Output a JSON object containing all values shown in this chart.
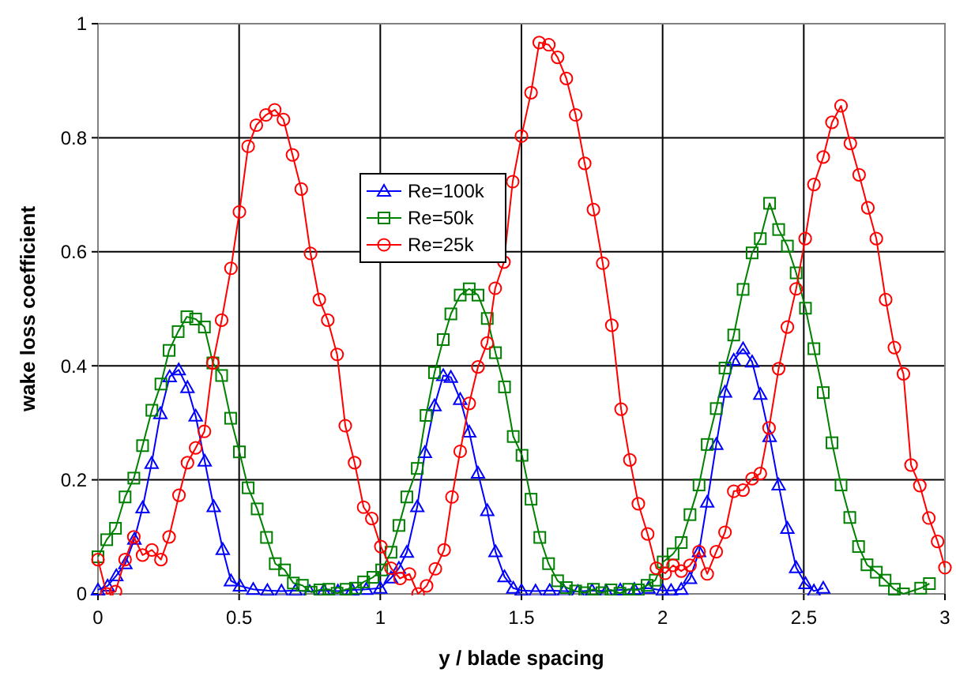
{
  "chart_data": {
    "type": "line",
    "xlabel": "y / blade spacing",
    "ylabel": "wake loss coefficient",
    "xlim": [
      0,
      3
    ],
    "xticks": [
      0,
      0.5,
      1,
      1.5,
      2,
      2.5,
      3
    ],
    "ylim": [
      0,
      1
    ],
    "yticks": [
      0,
      0.2,
      0.4,
      0.6,
      0.8,
      1
    ],
    "grid": true,
    "legend": "top left",
    "series": [
      {
        "name": "Re=100k",
        "color": "#0000ff",
        "marker": "triangle",
        "x": [
          0,
          0.034,
          0.065,
          0.097,
          0.129,
          0.158,
          0.19,
          0.221,
          0.254,
          0.286,
          0.317,
          0.346,
          0.378,
          0.41,
          0.442,
          0.471,
          0.503,
          0.55,
          0.6,
          0.65,
          0.7,
          0.75,
          0.8,
          0.85,
          0.9,
          0.95,
          1.0,
          1.038,
          1.066,
          1.094,
          1.131,
          1.158,
          1.192,
          1.223,
          1.25,
          1.283,
          1.315,
          1.346,
          1.379,
          1.408,
          1.44,
          1.471,
          1.5,
          1.55,
          1.6,
          1.65,
          1.7,
          1.75,
          1.8,
          1.85,
          1.9,
          1.95,
          2.0,
          2.03,
          2.066,
          2.097,
          2.129,
          2.158,
          2.19,
          2.221,
          2.252,
          2.285,
          2.317,
          2.346,
          2.379,
          2.411,
          2.442,
          2.473,
          2.506,
          2.536,
          2.569
        ],
        "values": [
          0.007,
          0.014,
          0.032,
          0.053,
          0.096,
          0.151,
          0.229,
          0.316,
          0.381,
          0.393,
          0.362,
          0.312,
          0.233,
          0.153,
          0.078,
          0.023,
          0.014,
          0.008,
          0.006,
          0.005,
          0.006,
          0.004,
          0.006,
          0.005,
          0.007,
          0.008,
          0.01,
          0.028,
          0.045,
          0.073,
          0.153,
          0.248,
          0.33,
          0.383,
          0.38,
          0.341,
          0.284,
          0.212,
          0.146,
          0.074,
          0.03,
          0.01,
          0.006,
          0.005,
          0.006,
          0.005,
          0.004,
          0.006,
          0.005,
          0.007,
          0.008,
          0.01,
          0.006,
          0.006,
          0.008,
          0.027,
          0.074,
          0.161,
          0.262,
          0.354,
          0.41,
          0.43,
          0.407,
          0.35,
          0.276,
          0.191,
          0.115,
          0.046,
          0.018,
          0.005,
          0.01
        ]
      },
      {
        "name": "Re=50k",
        "color": "#008000",
        "marker": "square",
        "x": [
          0,
          0.031,
          0.062,
          0.096,
          0.127,
          0.158,
          0.191,
          0.223,
          0.252,
          0.284,
          0.315,
          0.346,
          0.377,
          0.407,
          0.438,
          0.47,
          0.501,
          0.532,
          0.564,
          0.597,
          0.628,
          0.661,
          0.692,
          0.724,
          0.755,
          0.786,
          0.818,
          0.847,
          0.879,
          0.912,
          0.941,
          0.974,
          1.005,
          1.038,
          1.066,
          1.094,
          1.131,
          1.162,
          1.192,
          1.223,
          1.25,
          1.283,
          1.315,
          1.346,
          1.379,
          1.408,
          1.44,
          1.471,
          1.502,
          1.534,
          1.565,
          1.596,
          1.628,
          1.659,
          1.692,
          1.724,
          1.755,
          1.785,
          1.817,
          1.849,
          1.88,
          1.914,
          1.945,
          1.974,
          2.002,
          2.037,
          2.066,
          2.097,
          2.129,
          2.158,
          2.19,
          2.221,
          2.252,
          2.285,
          2.317,
          2.346,
          2.379,
          2.411,
          2.442,
          2.473,
          2.506,
          2.536,
          2.569,
          2.6,
          2.632,
          2.663,
          2.694,
          2.724,
          2.757,
          2.788,
          2.821,
          2.853,
          2.914,
          2.945
        ],
        "values": [
          0.065,
          0.095,
          0.115,
          0.17,
          0.203,
          0.26,
          0.322,
          0.368,
          0.427,
          0.46,
          0.486,
          0.482,
          0.468,
          0.405,
          0.383,
          0.308,
          0.249,
          0.186,
          0.149,
          0.099,
          0.053,
          0.042,
          0.019,
          0.015,
          0.003,
          0.007,
          0.008,
          0.001,
          0.008,
          0.01,
          0.021,
          0.029,
          0.042,
          0.073,
          0.12,
          0.17,
          0.22,
          0.313,
          0.388,
          0.446,
          0.491,
          0.524,
          0.535,
          0.524,
          0.483,
          0.423,
          0.363,
          0.276,
          0.243,
          0.166,
          0.099,
          0.053,
          0.023,
          0.011,
          0.005,
          0.002,
          0.008,
          0.002,
          0.007,
          0.001,
          0.008,
          0.007,
          0.015,
          0.024,
          0.056,
          0.07,
          0.09,
          0.139,
          0.191,
          0.262,
          0.325,
          0.396,
          0.454,
          0.534,
          0.598,
          0.623,
          0.685,
          0.639,
          0.61,
          0.563,
          0.501,
          0.43,
          0.353,
          0.265,
          0.191,
          0.134,
          0.083,
          0.051,
          0.038,
          0.024,
          0.008,
          0,
          0.01,
          0.018
        ]
      },
      {
        "name": "Re=25k",
        "color": "#ff0000",
        "marker": "circle",
        "x": [
          0,
          0.031,
          0.062,
          0.096,
          0.127,
          0.158,
          0.191,
          0.223,
          0.252,
          0.287,
          0.317,
          0.346,
          0.377,
          0.407,
          0.438,
          0.471,
          0.501,
          0.532,
          0.561,
          0.595,
          0.626,
          0.657,
          0.689,
          0.72,
          0.753,
          0.784,
          0.814,
          0.847,
          0.876,
          0.909,
          0.941,
          0.97,
          1.002,
          1.038,
          1.07,
          1.103,
          1.134,
          1.164,
          1.195,
          1.226,
          1.254,
          1.283,
          1.315,
          1.346,
          1.379,
          1.407,
          1.438,
          1.469,
          1.5,
          1.534,
          1.563,
          1.597,
          1.628,
          1.659,
          1.692,
          1.724,
          1.755,
          1.788,
          1.82,
          1.853,
          1.884,
          1.914,
          1.947,
          1.978,
          2.009,
          2.037,
          2.066,
          2.097,
          2.129,
          2.158,
          2.19,
          2.221,
          2.252,
          2.285,
          2.317,
          2.346,
          2.377,
          2.411,
          2.442,
          2.473,
          2.505,
          2.536,
          2.569,
          2.6,
          2.632,
          2.665,
          2.696,
          2.727,
          2.757,
          2.79,
          2.821,
          2.853,
          2.88,
          2.911,
          2.943,
          2.974,
          3.0
        ],
        "values": [
          0.06,
          0,
          0.004,
          0.06,
          0.1,
          0.068,
          0.077,
          0.06,
          0.1,
          0.173,
          0.23,
          0.256,
          0.285,
          0.405,
          0.48,
          0.571,
          0.67,
          0.785,
          0.822,
          0.84,
          0.849,
          0.832,
          0.77,
          0.71,
          0.597,
          0.516,
          0.48,
          0.42,
          0.295,
          0.23,
          0.152,
          0.132,
          0.083,
          0.045,
          0.027,
          0.035,
          0,
          0.014,
          0.044,
          0.077,
          0.17,
          0.25,
          0.334,
          0.398,
          0.44,
          0.536,
          0.582,
          0.723,
          0.803,
          0.879,
          0.967,
          0.963,
          0.941,
          0.904,
          0.84,
          0.755,
          0.674,
          0.58,
          0.471,
          0.324,
          0.235,
          0.158,
          0.105,
          0.045,
          0.036,
          0.05,
          0.04,
          0.05,
          0.074,
          0.035,
          0.074,
          0.108,
          0.18,
          0.182,
          0.202,
          0.211,
          0.291,
          0.395,
          0.468,
          0.535,
          0.623,
          0.718,
          0.766,
          0.827,
          0.856,
          0.79,
          0.735,
          0.677,
          0.623,
          0.516,
          0.432,
          0.386,
          0.226,
          0.19,
          0.133,
          0.092,
          0.046
        ]
      }
    ]
  }
}
